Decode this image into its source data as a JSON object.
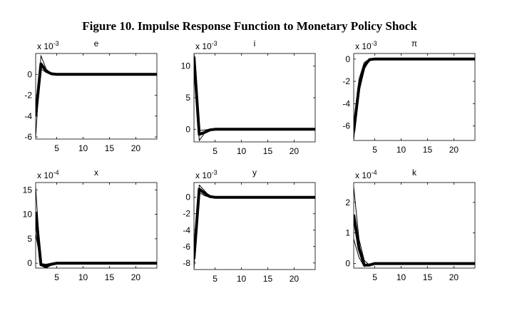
{
  "figure": {
    "title": "Figure 10. Impulse Response Function to Monetary Policy Shock"
  },
  "chart_data": [
    {
      "type": "line",
      "title": "e",
      "scale_label": "x 10",
      "scale_exp": "-3",
      "xlim": [
        1,
        24
      ],
      "ylim": [
        -6.2,
        2.0
      ],
      "xticks": [
        5,
        10,
        15,
        20
      ],
      "yticks": [
        -6,
        -4,
        -2,
        0
      ],
      "x": [
        1,
        2,
        3,
        4,
        5,
        6,
        24
      ],
      "series": [
        {
          "values": [
            -4.0,
            1.0,
            0.3,
            0.05,
            0,
            0,
            0
          ],
          "width": 4
        },
        {
          "values": [
            -6.0,
            1.8,
            0.5,
            0.05,
            0,
            0,
            0
          ],
          "width": 1
        },
        {
          "values": [
            -3.0,
            0.5,
            0.2,
            0.05,
            0,
            0,
            0
          ],
          "width": 1
        }
      ]
    },
    {
      "type": "line",
      "title": "i",
      "scale_label": "x 10",
      "scale_exp": "-3",
      "xlim": [
        1,
        24
      ],
      "ylim": [
        -2.0,
        12.0
      ],
      "xticks": [
        5,
        10,
        15,
        20
      ],
      "yticks": [
        0,
        5,
        10
      ],
      "x": [
        1,
        2,
        3,
        4,
        5,
        6,
        24
      ],
      "series": [
        {
          "values": [
            11.5,
            -0.8,
            -0.5,
            -0.1,
            0,
            0,
            0
          ],
          "width": 4
        },
        {
          "values": [
            12.0,
            -1.8,
            -0.6,
            -0.1,
            0,
            0,
            0
          ],
          "width": 1
        },
        {
          "values": [
            10.5,
            -0.2,
            -0.1,
            0,
            0,
            0,
            0
          ],
          "width": 1
        }
      ]
    },
    {
      "type": "line",
      "title": "π",
      "scale_label": "x 10",
      "scale_exp": "-3",
      "xlim": [
        1,
        24
      ],
      "ylim": [
        -7.3,
        0.5
      ],
      "xticks": [
        5,
        10,
        15,
        20
      ],
      "yticks": [
        -6,
        -4,
        -2,
        0
      ],
      "x": [
        1,
        2,
        3,
        4,
        5,
        24
      ],
      "series": [
        {
          "values": [
            -6.5,
            -2.5,
            -0.6,
            -0.05,
            0,
            0
          ],
          "width": 4
        },
        {
          "values": [
            -7.2,
            -3.0,
            -0.9,
            -0.1,
            0,
            0
          ],
          "width": 1
        },
        {
          "values": [
            -5.8,
            -1.8,
            -0.3,
            0,
            0,
            0
          ],
          "width": 1
        }
      ]
    },
    {
      "type": "line",
      "title": "x",
      "scale_label": "x 10",
      "scale_exp": "-4",
      "xlim": [
        1,
        24
      ],
      "ylim": [
        -1.0,
        16.5
      ],
      "xticks": [
        5,
        10,
        15,
        20
      ],
      "yticks": [
        0,
        5,
        10,
        15
      ],
      "x": [
        1,
        2,
        3,
        4,
        5,
        6,
        24
      ],
      "series": [
        {
          "values": [
            10.5,
            -0.3,
            -0.6,
            -0.2,
            0,
            0,
            0
          ],
          "width": 4
        },
        {
          "values": [
            15.5,
            -0.5,
            -1.0,
            -0.3,
            0,
            0,
            0
          ],
          "width": 1
        },
        {
          "values": [
            6.0,
            -0.1,
            -0.2,
            0,
            0,
            0,
            0
          ],
          "width": 1
        }
      ]
    },
    {
      "type": "line",
      "title": "y",
      "scale_label": "x 10",
      "scale_exp": "-3",
      "xlim": [
        1,
        24
      ],
      "ylim": [
        -8.8,
        1.8
      ],
      "xticks": [
        5,
        10,
        15,
        20
      ],
      "yticks": [
        -8,
        -6,
        -4,
        -2,
        0
      ],
      "x": [
        1,
        2,
        3,
        4,
        5,
        6,
        24
      ],
      "series": [
        {
          "values": [
            -7.5,
            1.0,
            0.5,
            0.1,
            0,
            0,
            0
          ],
          "width": 4
        },
        {
          "values": [
            -8.7,
            1.5,
            0.8,
            0.1,
            0,
            0,
            0
          ],
          "width": 1
        },
        {
          "values": [
            -6.5,
            0.6,
            0.2,
            0,
            0,
            0,
            0
          ],
          "width": 1
        }
      ]
    },
    {
      "type": "line",
      "title": "k",
      "scale_label": "x 10",
      "scale_exp": "-4",
      "xlim": [
        1,
        24
      ],
      "ylim": [
        -0.15,
        2.65
      ],
      "xticks": [
        5,
        10,
        15,
        20
      ],
      "yticks": [
        0,
        1,
        2
      ],
      "x": [
        1,
        2,
        3,
        4,
        5,
        6,
        24
      ],
      "series": [
        {
          "values": [
            1.6,
            0.5,
            -0.05,
            -0.05,
            0,
            0,
            0
          ],
          "width": 4
        },
        {
          "values": [
            2.5,
            0.8,
            0.1,
            -0.05,
            0,
            0,
            0
          ],
          "width": 1
        },
        {
          "values": [
            0.8,
            0.2,
            -0.1,
            -0.02,
            0,
            0,
            0
          ],
          "width": 1
        }
      ]
    }
  ]
}
